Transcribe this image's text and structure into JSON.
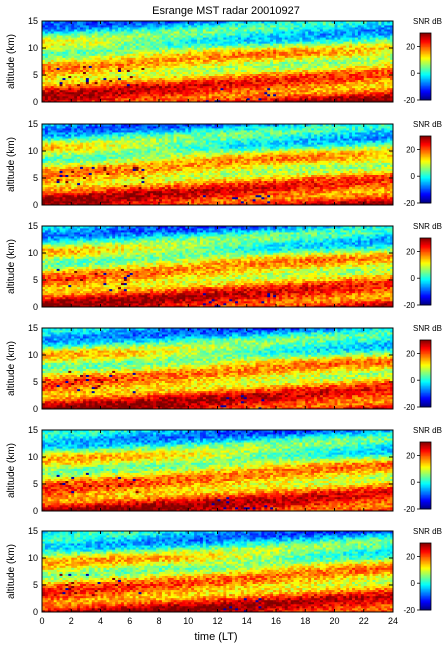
{
  "title": "Esrange MST radar 20010927",
  "chart_data": {
    "type": "heatmap",
    "title": "Esrange MST radar 20010927",
    "xlabel": "time (LT)",
    "ylabel": "altitude (km)",
    "xlim": [
      0,
      24
    ],
    "ylim": [
      0,
      15
    ],
    "x_ticks": [
      "0",
      "2",
      "4",
      "6",
      "8",
      "10",
      "12",
      "14",
      "16",
      "18",
      "20",
      "22",
      "24"
    ],
    "y_ticks": [
      "0",
      "5",
      "10",
      "15"
    ],
    "colorbar": {
      "label": "SNR dB",
      "range": [
        -20,
        30
      ],
      "ticks": [
        "20",
        "0",
        "-20"
      ],
      "colormap": "jet"
    },
    "panel_count": 6,
    "panels": [
      {
        "ylabel": "altitude (km)"
      },
      {
        "ylabel": "altitude (km)"
      },
      {
        "ylabel": "altitude (km)"
      },
      {
        "ylabel": "altitude (km)"
      },
      {
        "ylabel": "altitude (km)"
      },
      {
        "ylabel": "altitude (km)"
      }
    ]
  }
}
